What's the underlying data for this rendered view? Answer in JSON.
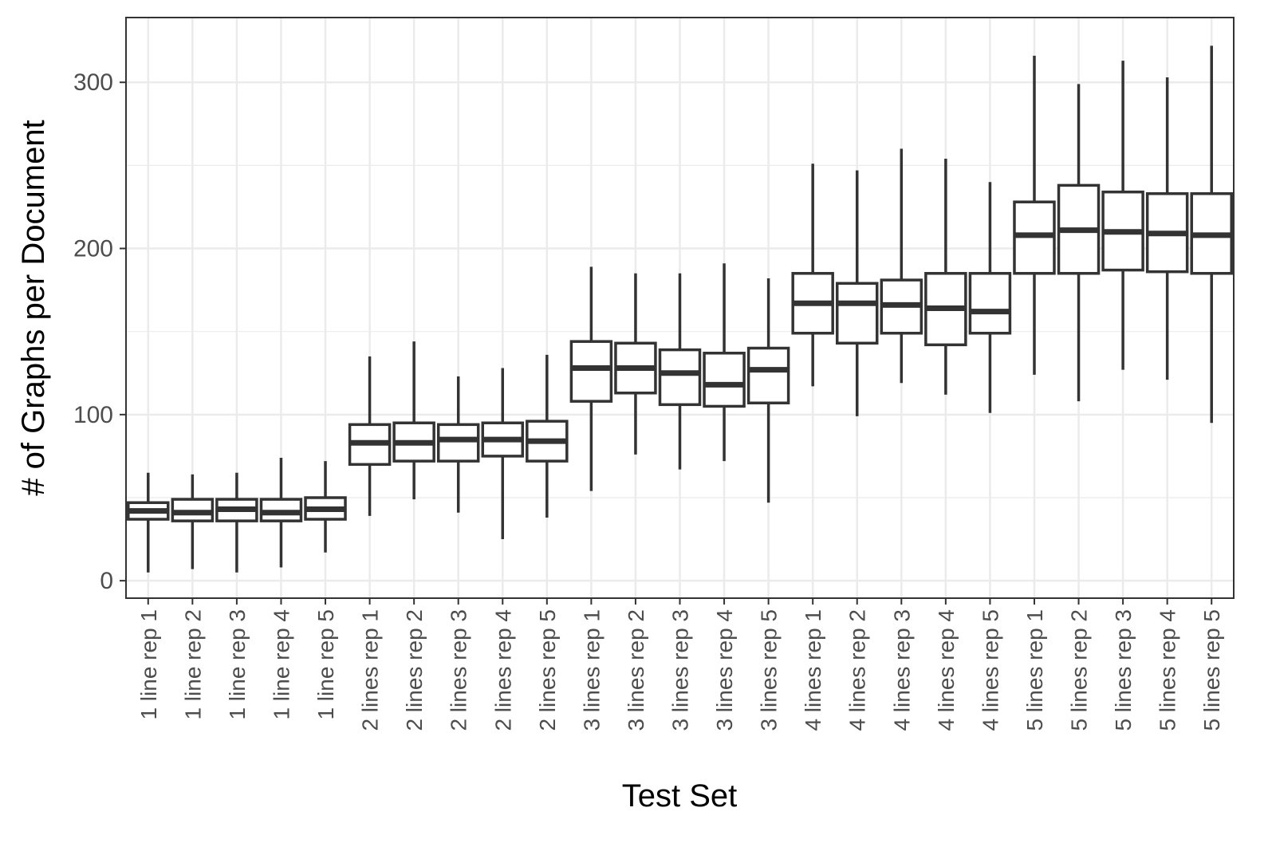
{
  "chart_data": {
    "type": "box",
    "title": "",
    "xlabel": "Test Set",
    "ylabel": "# of Graphs per Document",
    "ylim": [
      -10.5,
      339
    ],
    "y_ticks": [
      0,
      100,
      200,
      300
    ],
    "y_tick_labels": [
      "0",
      "100",
      "200",
      "300"
    ],
    "grid": true,
    "colors": {
      "box_stroke": "#333333",
      "box_fill": "#ffffff",
      "grid": "#ebebeb",
      "panel_border": "#333333"
    },
    "categories": [
      "1 line rep 1",
      "1 line rep 2",
      "1 line rep 3",
      "1 line rep 4",
      "1 line rep 5",
      "2 lines rep 1",
      "2 lines rep 2",
      "2 lines rep 3",
      "2 lines rep 4",
      "2 lines rep 5",
      "3 lines rep 1",
      "3 lines rep 2",
      "3 lines rep 3",
      "3 lines rep 4",
      "3 lines rep 5",
      "4 lines rep 1",
      "4 lines rep 2",
      "4 lines rep 3",
      "4 lines rep 4",
      "4 lines rep 5",
      "5 lines rep 1",
      "5 lines rep 2",
      "5 lines rep 3",
      "5 lines rep 4",
      "5 lines rep 5"
    ],
    "boxes": [
      {
        "min": 5,
        "q1": 37,
        "median": 42,
        "q3": 47,
        "max": 65
      },
      {
        "min": 7,
        "q1": 36,
        "median": 41,
        "q3": 49,
        "max": 64
      },
      {
        "min": 5,
        "q1": 36,
        "median": 43,
        "q3": 49,
        "max": 65
      },
      {
        "min": 8,
        "q1": 36,
        "median": 41,
        "q3": 49,
        "max": 74
      },
      {
        "min": 17,
        "q1": 37,
        "median": 43,
        "q3": 50,
        "max": 72
      },
      {
        "min": 39,
        "q1": 70,
        "median": 83,
        "q3": 94,
        "max": 135
      },
      {
        "min": 49,
        "q1": 72,
        "median": 83,
        "q3": 95,
        "max": 144
      },
      {
        "min": 41,
        "q1": 72,
        "median": 85,
        "q3": 94,
        "max": 123
      },
      {
        "min": 25,
        "q1": 75,
        "median": 85,
        "q3": 95,
        "max": 128
      },
      {
        "min": 38,
        "q1": 72,
        "median": 84,
        "q3": 96,
        "max": 136
      },
      {
        "min": 54,
        "q1": 108,
        "median": 128,
        "q3": 144,
        "max": 189
      },
      {
        "min": 76,
        "q1": 113,
        "median": 128,
        "q3": 143,
        "max": 185
      },
      {
        "min": 67,
        "q1": 106,
        "median": 125,
        "q3": 139,
        "max": 185
      },
      {
        "min": 72,
        "q1": 105,
        "median": 118,
        "q3": 137,
        "max": 191
      },
      {
        "min": 47,
        "q1": 107,
        "median": 127,
        "q3": 140,
        "max": 182
      },
      {
        "min": 117,
        "q1": 149,
        "median": 167,
        "q3": 185,
        "max": 251
      },
      {
        "min": 99,
        "q1": 143,
        "median": 167,
        "q3": 179,
        "max": 247
      },
      {
        "min": 119,
        "q1": 149,
        "median": 166,
        "q3": 181,
        "max": 260
      },
      {
        "min": 112,
        "q1": 142,
        "median": 164,
        "q3": 185,
        "max": 254
      },
      {
        "min": 101,
        "q1": 149,
        "median": 162,
        "q3": 185,
        "max": 240
      },
      {
        "min": 124,
        "q1": 185,
        "median": 208,
        "q3": 228,
        "max": 316
      },
      {
        "min": 108,
        "q1": 185,
        "median": 211,
        "q3": 238,
        "max": 299
      },
      {
        "min": 127,
        "q1": 187,
        "median": 210,
        "q3": 234,
        "max": 313
      },
      {
        "min": 121,
        "q1": 186,
        "median": 209,
        "q3": 233,
        "max": 303
      },
      {
        "min": 95,
        "q1": 185,
        "median": 208,
        "q3": 233,
        "max": 322
      }
    ]
  }
}
